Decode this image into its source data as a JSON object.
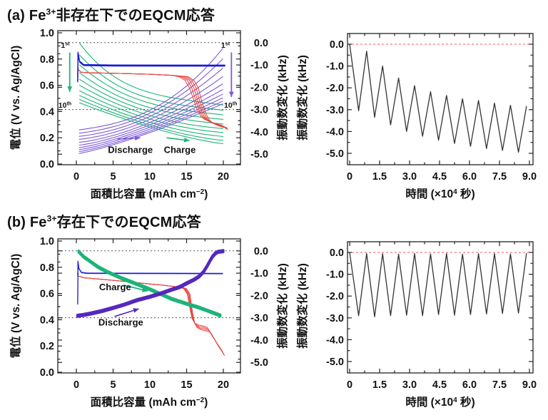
{
  "panels": {
    "a": {
      "title": {
        "prefix": "(a) Fe",
        "sup": "3+",
        "suffix": "非存在下でのEQCM応答"
      }
    },
    "b": {
      "title": {
        "prefix": "(b) Fe",
        "sup": "3+",
        "suffix": "存在下でのEQCM応答"
      }
    }
  },
  "colors": {
    "blue": "#1b1bd6",
    "red": "#e8413c",
    "green": "#1cb478",
    "purple_light": "#7d5ad7",
    "purple_deep": "#5528be",
    "black_line": "#333333",
    "zero_dash": "#ff5555",
    "guide_dot": "#555555",
    "frame": "#222222",
    "text": "#111111"
  },
  "chart_data": [
    {
      "id": "a_left",
      "row": "a",
      "type": "line",
      "title": "Fe3+ 非存在下: 充放電曲線とEQCM振動数変化 (1-10サイクル)",
      "xlabel": {
        "pre": "面積比容量 (mAh cm",
        "sup": "−2",
        "post": ")"
      },
      "ylabel": "電位 (V vs. Ag/AgCl)",
      "y2label": "振動数変化 (kHz)",
      "xlim": [
        -2.5,
        22.3
      ],
      "ylim": [
        0,
        1.0
      ],
      "xticks": {
        "values": [
          0,
          5,
          10,
          15,
          20
        ],
        "labels": [
          "0",
          "5",
          "10",
          "15",
          "20"
        ]
      },
      "yticks": {
        "values": [
          0,
          0.2,
          0.4,
          0.6,
          0.8,
          1.0
        ],
        "labels": [
          "0.0",
          "0.2",
          "0.4",
          "0.6",
          "0.8",
          "1.0"
        ]
      },
      "y2ticks": {
        "values": [
          0,
          -1,
          -2,
          -3,
          -4,
          -5
        ],
        "labels": [
          "0.0",
          "-1.0",
          "-2.0",
          "-3.0",
          "-4.0",
          "-5.0"
        ]
      },
      "y2_map": {
        "zero_at_V": 0.925,
        "volts_per_kHz": 0.17
      },
      "guides_kHz": [
        0,
        -3
      ],
      "series": {
        "charge_frequency": {
          "color_key": "green",
          "width": 1.1,
          "fan": true,
          "mix": 0.7,
          "x_start": 0.45,
          "x_end": 19.95,
          "start_V": [
            0.92,
            0.83,
            0.755,
            0.695,
            0.645,
            0.6,
            0.558,
            0.522,
            0.492,
            0.466
          ],
          "end_V": [
            0.45,
            0.41,
            0.375,
            0.34,
            0.305,
            0.27,
            0.24,
            0.21,
            0.18,
            0.155
          ],
          "exponent": [
            4.0,
            3.6,
            3.2,
            2.9,
            2.6,
            2.3,
            2.1,
            1.9,
            1.7,
            1.5
          ],
          "mode": "decay"
        },
        "discharge_frequency": {
          "color_key": "purple_light",
          "width": 1.1,
          "fan": true,
          "mix": 0.75,
          "x_start": 0.4,
          "x_end": 19.9,
          "start_V": [
            0.26,
            0.235,
            0.211,
            0.188,
            0.165,
            0.144,
            0.126,
            0.11,
            0.095,
            0.081
          ],
          "end_V": [
            0.88,
            0.8,
            0.73,
            0.665,
            0.61,
            0.567,
            0.532,
            0.503,
            0.478,
            0.458
          ],
          "exponent": [
            2.6,
            2.3,
            2.1,
            1.9,
            1.75,
            1.6,
            1.5,
            1.42,
            1.36,
            1.3
          ],
          "mode": "rise"
        },
        "discharge_voltage": {
          "color_key": "red",
          "width": 1.0,
          "cycles": 5,
          "cycle_dx": 0.3,
          "dx_after_x": 13,
          "tail_dv": -0.008,
          "points": [
            [
              0.2,
              0.725
            ],
            [
              0.6,
              0.7
            ],
            [
              2,
              0.695
            ],
            [
              6,
              0.69
            ],
            [
              10,
              0.684
            ],
            [
              13,
              0.676
            ],
            [
              14,
              0.665
            ],
            [
              14.8,
              0.638
            ],
            [
              15.4,
              0.58
            ],
            [
              15.9,
              0.5
            ],
            [
              16.4,
              0.42
            ],
            [
              16.9,
              0.368
            ],
            [
              17.4,
              0.342
            ],
            [
              18.2,
              0.322
            ],
            [
              19.0,
              0.308
            ],
            [
              19.8,
              0.295
            ]
          ]
        },
        "charge_voltage": {
          "color_key": "blue",
          "width": 1.3,
          "passes": 3,
          "pass_dv": 0.004,
          "points": [
            [
              0.18,
              0.63
            ],
            [
              0.22,
              0.848
            ],
            [
              0.45,
              0.78
            ],
            [
              1.0,
              0.754
            ],
            [
              5,
              0.751
            ],
            [
              18,
              0.75
            ],
            [
              20.2,
              0.75
            ]
          ]
        }
      },
      "annotations": [
        {
          "type": "suptext",
          "base": "1",
          "sup": "st",
          "x": -2.1,
          "v": 0.885,
          "color_key": "green",
          "size": 10.5
        },
        {
          "type": "arrow",
          "from": [
            -0.9,
            0.85
          ],
          "to": [
            -0.9,
            0.55
          ],
          "color_key": "green",
          "width": 1.8
        },
        {
          "type": "suptext",
          "base": "10",
          "sup": "th",
          "x": -2.45,
          "v": 0.43,
          "color_key": "green",
          "size": 10.5
        },
        {
          "type": "suptext",
          "base": "1",
          "sup": "st",
          "x": 19.7,
          "v": 0.885,
          "color_key": "purple_light",
          "size": 10.5
        },
        {
          "type": "arrow",
          "from": [
            21.1,
            0.85
          ],
          "to": [
            21.1,
            0.51
          ],
          "color_key": "purple_light",
          "width": 1.8
        },
        {
          "type": "suptext",
          "base": "10",
          "sup": "th",
          "x": 20.1,
          "v": 0.43,
          "color_key": "purple_light",
          "size": 10.5
        },
        {
          "type": "arrow",
          "from": [
            5.6,
            0.19
          ],
          "to": [
            8.7,
            0.2
          ],
          "color_key": "purple_light",
          "width": 1.6
        },
        {
          "type": "text",
          "text": "Discharge",
          "x": 4.3,
          "v": 0.085,
          "color_key": "purple_light",
          "size": 13
        },
        {
          "type": "arrow",
          "from": [
            12.3,
            0.2
          ],
          "to": [
            15.4,
            0.178
          ],
          "color_key": "green",
          "width": 1.6
        },
        {
          "type": "text",
          "text": "Charge",
          "x": 11.9,
          "v": 0.085,
          "color_key": "green",
          "size": 13
        }
      ]
    },
    {
      "id": "a_right",
      "row": "a",
      "type": "line",
      "title": "Fe3+ 非存在下: 振動数変化の時間推移",
      "xlabel": {
        "pre": "時間 (×10",
        "sup": "4",
        "post": " 秒)"
      },
      "ylabel": "振動数変化 (kHz)",
      "xlim": [
        -0.1,
        9.18
      ],
      "ylim": [
        -5.5,
        0.49
      ],
      "xticks": {
        "values": [
          0,
          1.5,
          3.0,
          4.5,
          6.0,
          7.5,
          9.0
        ],
        "labels": [
          "0",
          "1.5",
          "3.0",
          "4.5",
          "6.0",
          "7.5",
          "9.0"
        ]
      },
      "yticks": {
        "values": [
          0,
          -1,
          -2,
          -3,
          -4,
          -5
        ],
        "labels": [
          "0.0",
          "-1.0",
          "-2.0",
          "-3.0",
          "-4.0",
          "-5.0"
        ]
      },
      "zero_line_kHz": 0,
      "series": {
        "frequency": {
          "color_key": "black_line",
          "width": 1.3,
          "sawtooth": {
            "start": [
              0,
              0
            ],
            "period": 0.8,
            "trough_dt": 0.45,
            "peak_dt": 0.85,
            "troughs": [
              -3.05,
              -3.35,
              -3.7,
              -4.0,
              -4.22,
              -4.4,
              -4.55,
              -4.68,
              -4.78,
              -4.87,
              -4.95
            ],
            "peaks": [
              -0.32,
              -1.0,
              -1.55,
              -1.9,
              -2.18,
              -2.35,
              -2.5,
              -2.58,
              -2.7,
              -2.8,
              -2.85
            ]
          }
        }
      }
    },
    {
      "id": "b_left",
      "row": "b",
      "type": "line",
      "title": "Fe3+ 存在下: 充放電曲線とEQCM振動数変化 (1-10サイクル)",
      "xlabel": {
        "pre": "面積比容量 (mAh cm",
        "sup": "−2",
        "post": ")"
      },
      "ylabel": "電位 (V vs. Ag/AgCl)",
      "y2label": "振動数変化 (kHz)",
      "xlim": [
        -2.5,
        22.3
      ],
      "ylim": [
        0,
        1.0
      ],
      "xticks": {
        "values": [
          0,
          5,
          10,
          15,
          20
        ],
        "labels": [
          "0",
          "5",
          "10",
          "15",
          "20"
        ]
      },
      "yticks": {
        "values": [
          0,
          0.2,
          0.4,
          0.6,
          0.8,
          1.0
        ],
        "labels": [
          "0.0",
          "0.2",
          "0.4",
          "0.6",
          "0.8",
          "1.0"
        ]
      },
      "y2ticks": {
        "values": [
          0,
          -1,
          -2,
          -3,
          -4,
          -5
        ],
        "labels": [
          "0.0",
          "-1.0",
          "-2.0",
          "-3.0",
          "-4.0",
          "-5.0"
        ]
      },
      "y2_map": {
        "zero_at_V": 0.925,
        "volts_per_kHz": 0.17
      },
      "guides_kHz": [
        0,
        -3
      ],
      "series": {
        "discharge_voltage": {
          "color_key": "red",
          "width": 1.0,
          "cycles": 4,
          "cycle_dx": 0.12,
          "dx_after_x": 13.5,
          "tail_dv": -0.012,
          "points": [
            [
              0.15,
              0.755
            ],
            [
              0.2,
              0.735
            ],
            [
              1,
              0.72
            ],
            [
              3.5,
              0.708
            ],
            [
              6,
              0.695
            ],
            [
              8.3,
              0.682
            ],
            [
              10,
              0.673
            ],
            [
              11.5,
              0.665
            ],
            [
              13,
              0.655
            ],
            [
              13.8,
              0.649
            ],
            [
              14.6,
              0.638
            ],
            [
              15.1,
              0.595
            ],
            [
              15.45,
              0.49
            ],
            [
              15.75,
              0.41
            ],
            [
              16.1,
              0.375
            ],
            [
              16.6,
              0.36
            ],
            [
              17.2,
              0.353
            ],
            [
              17.8,
              0.342
            ],
            [
              18.1,
              0.315
            ],
            [
              18.5,
              0.28
            ],
            [
              19.0,
              0.232
            ],
            [
              19.5,
              0.19
            ],
            [
              19.8,
              0.165
            ]
          ]
        },
        "charge_voltage": {
          "color_key": "blue",
          "width": 1.2,
          "passes": 2,
          "pass_dv": 0.003,
          "points": [
            [
              0.18,
              0.52
            ],
            [
              0.22,
              0.845
            ],
            [
              0.35,
              0.79
            ],
            [
              0.7,
              0.76
            ],
            [
              1.5,
              0.754
            ],
            [
              19.9,
              0.752
            ]
          ]
        },
        "charge_frequency": {
          "color_key": "green",
          "width": 3.0,
          "passes": 3,
          "pass_dv": 0.007,
          "points": [
            [
              0.3,
              0.92
            ],
            [
              1,
              0.88
            ],
            [
              2,
              0.84
            ],
            [
              3,
              0.8
            ],
            [
              4.4,
              0.76
            ],
            [
              6,
              0.72
            ],
            [
              8.3,
              0.67
            ],
            [
              10,
              0.632
            ],
            [
              11.5,
              0.595
            ],
            [
              13,
              0.558
            ],
            [
              15.1,
              0.52
            ],
            [
              16.5,
              0.496
            ],
            [
              18,
              0.466
            ],
            [
              19.6,
              0.432
            ]
          ]
        },
        "discharge_frequency": {
          "color_key": "purple_deep",
          "width": 3.2,
          "passes": 3,
          "pass_dv": 0.007,
          "points": [
            [
              0.15,
              0.43
            ],
            [
              1,
              0.437
            ],
            [
              2,
              0.448
            ],
            [
              3.5,
              0.467
            ],
            [
              5,
              0.49
            ],
            [
              6.5,
              0.515
            ],
            [
              8.3,
              0.55
            ],
            [
              10,
              0.575
            ],
            [
              11.5,
              0.6
            ],
            [
              13,
              0.63
            ],
            [
              14,
              0.648
            ],
            [
              15.1,
              0.68
            ],
            [
              16,
              0.705
            ],
            [
              16.7,
              0.73
            ],
            [
              17.3,
              0.765
            ],
            [
              17.7,
              0.8
            ],
            [
              18.1,
              0.84
            ],
            [
              18.5,
              0.88
            ],
            [
              18.9,
              0.905
            ],
            [
              19.3,
              0.918
            ],
            [
              20,
              0.923
            ]
          ]
        }
      },
      "annotations": [
        {
          "type": "arrow",
          "from": [
            6.4,
            0.665
          ],
          "to": [
            9.7,
            0.618
          ],
          "color_key": "green",
          "width": 1.8
        },
        {
          "type": "text",
          "text": "Charge",
          "x": 3.1,
          "v": 0.625,
          "color_key": "green",
          "size": 13
        },
        {
          "type": "arrow",
          "from": [
            5.2,
            0.425
          ],
          "to": [
            8.5,
            0.483
          ],
          "color_key": "purple_deep",
          "width": 1.6
        },
        {
          "type": "text",
          "text": "Discharge",
          "x": 3.0,
          "v": 0.355,
          "color_key": "purple_deep",
          "size": 13
        }
      ]
    },
    {
      "id": "b_right",
      "row": "b",
      "type": "line",
      "title": "Fe3+ 存在下: 振動数変化の時間推移",
      "xlabel": {
        "pre": "時間 (×10",
        "sup": "4",
        "post": " 秒)"
      },
      "ylabel": "振動数変化 (kHz)",
      "xlim": [
        -0.1,
        9.18
      ],
      "ylim": [
        -5.5,
        0.49
      ],
      "xticks": {
        "values": [
          0,
          1.5,
          3.0,
          4.5,
          6.0,
          7.5,
          9.0
        ],
        "labels": [
          "0",
          "1.5",
          "3.0",
          "4.5",
          "6.0",
          "7.5",
          "9.0"
        ]
      },
      "yticks": {
        "values": [
          0,
          -1,
          -2,
          -3,
          -4,
          -5
        ],
        "labels": [
          "0.0",
          "-1.0",
          "-2.0",
          "-3.0",
          "-4.0",
          "-5.0"
        ]
      },
      "zero_line_kHz": 0,
      "series": {
        "frequency": {
          "color_key": "black_line",
          "width": 1.3,
          "sawtooth": {
            "start": [
              0,
              0
            ],
            "period": 0.8,
            "trough_dt": 0.45,
            "peak_dt": 0.85,
            "troughs": [
              -2.9,
              -2.95,
              -2.9,
              -2.88,
              -2.9,
              -2.85,
              -2.88,
              -2.85,
              -2.82,
              -2.8,
              -2.78
            ],
            "peaks": [
              -0.05,
              -0.06,
              -0.08,
              -0.05,
              -0.07,
              -0.05,
              -0.08,
              -0.06,
              -0.05,
              -0.07,
              -0.05
            ]
          }
        }
      }
    }
  ]
}
